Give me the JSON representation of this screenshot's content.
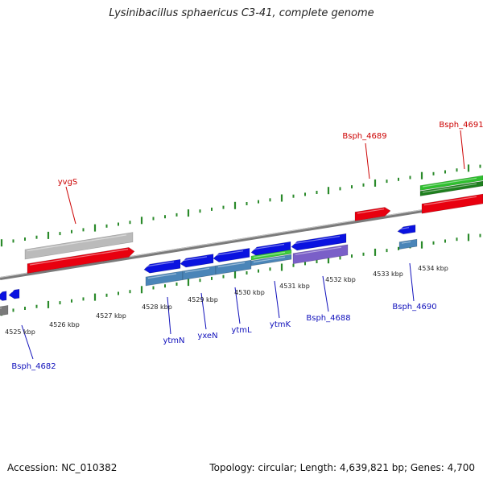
{
  "title": "Lysinibacillus sphaericus C3-41, complete genome",
  "footer": {
    "accession": "Accession: NC_010382",
    "summary": "Topology: circular; Length: 4,639,821 bp; Genes: 4,700"
  },
  "colors": {
    "forward_gene": "#e8000f",
    "forward_other": "#bbbbbb",
    "forward_green": "#2fbf2f",
    "reverse_gene": "#0a12e0",
    "reverse_steel": "#4a85b8",
    "reverse_green": "#3ccc3c",
    "reverse_purple": "#7a5fc8",
    "backbone": "#7a7a7a",
    "ticks": "#2a8a2a",
    "label_forward": "#cc0000",
    "label_reverse": "#1010bb"
  },
  "kbp_labels": [
    "4525 kbp",
    "4526 kbp",
    "4527 kbp",
    "4528 kbp",
    "4529 kbp",
    "4530 kbp",
    "4531 kbp",
    "4532 kbp",
    "4533 kbp",
    "4534 kbp"
  ],
  "forward_labels": [
    "yvgS",
    "Bsph_4689",
    "Bsph_4691"
  ],
  "reverse_labels": [
    "Bsph_4682",
    "ytmN",
    "yxeN",
    "ytmL",
    "ytmK",
    "Bsph_4688",
    "Bsph_4690"
  ]
}
